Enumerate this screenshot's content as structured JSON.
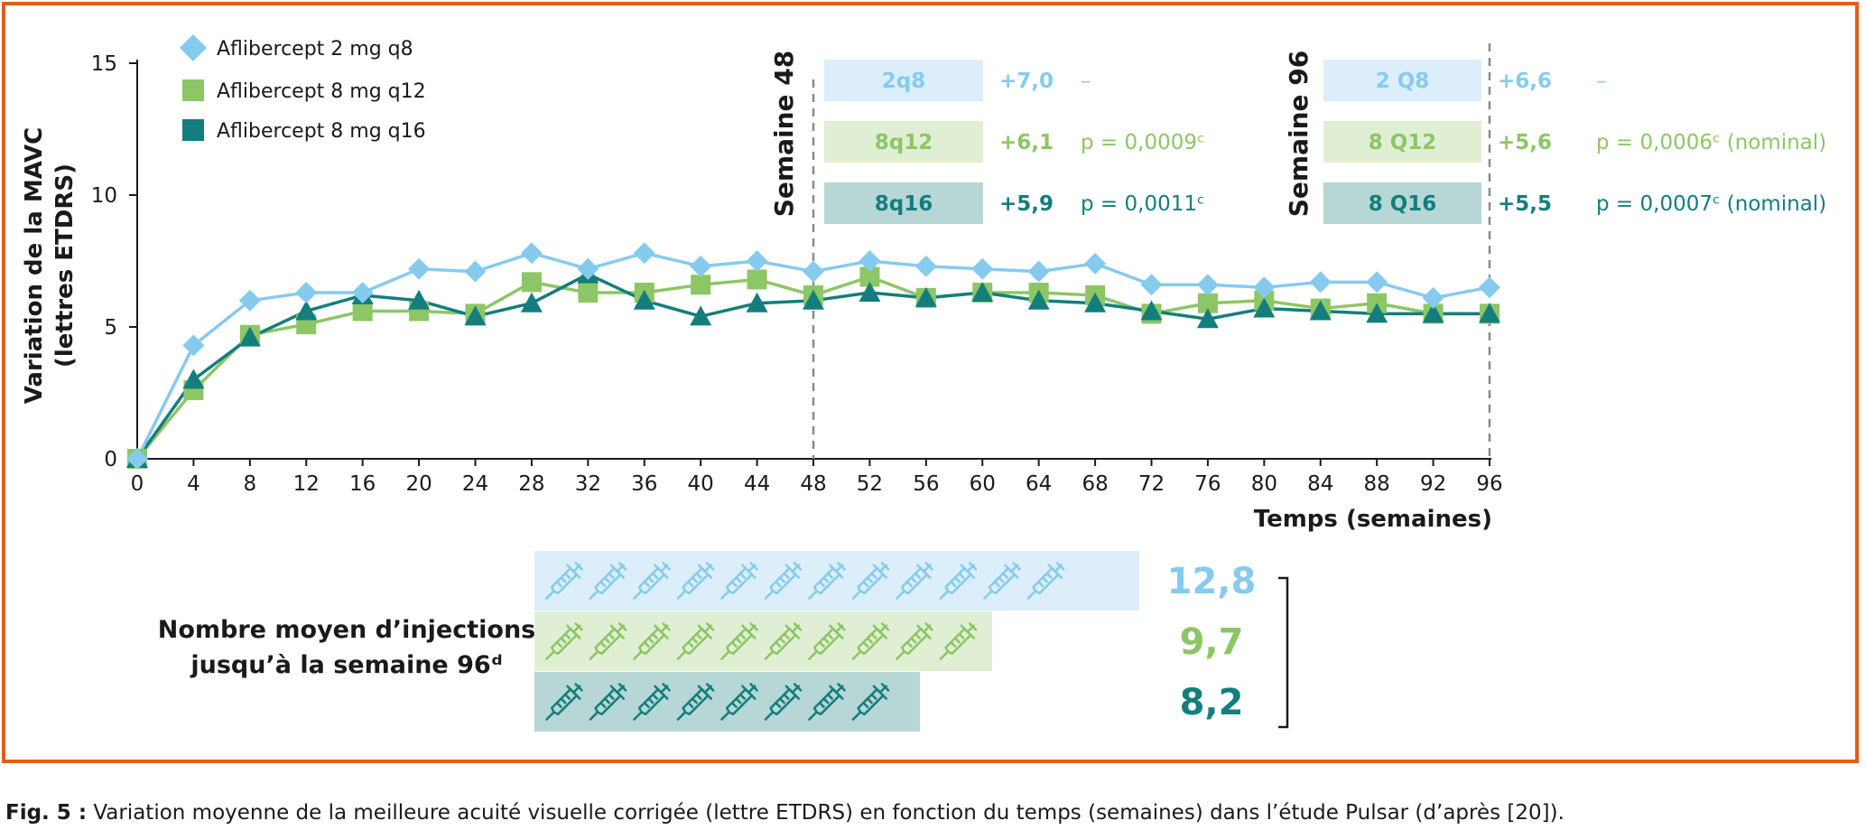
{
  "colors": {
    "q8": "#86cbee",
    "q12": "#8cc665",
    "q16": "#137e7d",
    "q8_box": "#dbeef9",
    "q12_box": "#e0efd4",
    "q16_box": "#b6d7d6",
    "border": "#e25c1c"
  },
  "chart_data": {
    "type": "line",
    "ylabel": "Variation de la MAVC (lettres ETDRS)",
    "ylabel_lines": [
      "Variation de la MAVC",
      "(lettres ETDRS)"
    ],
    "xlabel": "Temps (semaines)",
    "xlim": [
      0,
      96
    ],
    "ylim": [
      0,
      15
    ],
    "yticks": [
      0,
      5,
      10,
      15
    ],
    "x": [
      0,
      4,
      8,
      12,
      16,
      20,
      24,
      28,
      32,
      36,
      40,
      44,
      48,
      52,
      56,
      60,
      64,
      68,
      72,
      76,
      80,
      84,
      88,
      92,
      96
    ],
    "series": [
      {
        "key": "q8",
        "name": "Aflibercept 2 mg q8",
        "marker": "diamond",
        "values": [
          0,
          4.3,
          6.0,
          6.3,
          6.3,
          7.2,
          7.1,
          7.8,
          7.2,
          7.8,
          7.3,
          7.5,
          7.1,
          7.5,
          7.3,
          7.2,
          7.1,
          7.4,
          6.6,
          6.6,
          6.5,
          6.7,
          6.7,
          6.1,
          6.5
        ]
      },
      {
        "key": "q12",
        "name": "Aflibercept 8 mg q12",
        "marker": "square",
        "values": [
          0,
          2.6,
          4.7,
          5.1,
          5.6,
          5.6,
          5.5,
          6.7,
          6.3,
          6.3,
          6.6,
          6.8,
          6.2,
          6.9,
          6.1,
          6.3,
          6.3,
          6.2,
          5.5,
          5.9,
          6.0,
          5.7,
          5.9,
          5.5,
          5.5
        ]
      },
      {
        "key": "q16",
        "name": "Aflibercept 8 mg q16",
        "marker": "triangle",
        "values": [
          0,
          3.0,
          4.6,
          5.6,
          6.2,
          6.0,
          5.4,
          5.9,
          7.0,
          6.0,
          5.4,
          5.9,
          6.0,
          6.3,
          6.1,
          6.3,
          6.0,
          5.9,
          5.6,
          5.3,
          5.7,
          5.6,
          5.5,
          5.5,
          5.5
        ]
      }
    ],
    "markers_vlines": [
      {
        "x": 48,
        "label": "Semaine 48"
      },
      {
        "x": 96,
        "label": "Semaine 96"
      }
    ]
  },
  "week48": {
    "rows": [
      {
        "key": "q8",
        "label": "2q8",
        "delta": "+7,0",
        "p": "–"
      },
      {
        "key": "q12",
        "label": "8q12",
        "delta": "+6,1",
        "p": "p = 0,0009ᶜ"
      },
      {
        "key": "q16",
        "label": "8q16",
        "delta": "+5,9",
        "p": "p = 0,0011ᶜ"
      }
    ]
  },
  "week96": {
    "rows": [
      {
        "key": "q8",
        "label": "2 Q8",
        "delta": "+6,6",
        "p": "–"
      },
      {
        "key": "q12",
        "label": "8 Q12",
        "delta": "+5,6",
        "p": "p = 0,0006ᶜ (nominal)"
      },
      {
        "key": "q16",
        "label": "8 Q16",
        "delta": "+5,5",
        "p": "p = 0,0007ᶜ (nominal)"
      }
    ]
  },
  "injections": {
    "label_line1": "Nombre moyen d’injections",
    "label_line2": "jusqu’à la semaine 96ᵈ",
    "rows": [
      {
        "key": "q8",
        "value": "12,8",
        "count": 12.8
      },
      {
        "key": "q12",
        "value": "9,7",
        "count": 9.7
      },
      {
        "key": "q16",
        "value": "8,2",
        "count": 8.2
      }
    ]
  },
  "caption": {
    "label": "Fig. 5 :",
    "text": " Variation moyenne de la meilleure acuité visuelle corrigée (lettre ETDRS) en fonction du temps (semaines) dans l’étude Pulsar (d’après [20])."
  }
}
